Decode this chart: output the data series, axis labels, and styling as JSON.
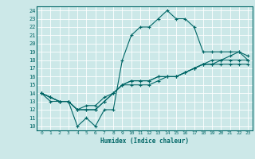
{
  "xlabel": "Humidex (Indice chaleur)",
  "bg_color": "#cce8e8",
  "line_color": "#006666",
  "grid_color": "#ffffff",
  "xlim": [
    -0.5,
    23.5
  ],
  "ylim": [
    9.5,
    24.5
  ],
  "xticks": [
    0,
    1,
    2,
    3,
    4,
    5,
    6,
    7,
    8,
    9,
    10,
    11,
    12,
    13,
    14,
    15,
    16,
    17,
    18,
    19,
    20,
    21,
    22,
    23
  ],
  "yticks": [
    10,
    11,
    12,
    13,
    14,
    15,
    16,
    17,
    18,
    19,
    20,
    21,
    22,
    23,
    24
  ],
  "line1_x": [
    0,
    1,
    2,
    3,
    4,
    5,
    6,
    7,
    8,
    9,
    10,
    11,
    12,
    13,
    14,
    15,
    16,
    17,
    18,
    19,
    20,
    21,
    22,
    23
  ],
  "line1_y": [
    14,
    13,
    13,
    13,
    10,
    11,
    10,
    12,
    12,
    18,
    21,
    22,
    22,
    23,
    24,
    23,
    23,
    22,
    19,
    19,
    19,
    19,
    19,
    18
  ],
  "line2_x": [
    0,
    1,
    2,
    3,
    4,
    5,
    6,
    7,
    8,
    9,
    10,
    11,
    12,
    13,
    14,
    15,
    16,
    17,
    18,
    19,
    20,
    21,
    22,
    23
  ],
  "line2_y": [
    14,
    13.5,
    13,
    13,
    12,
    12,
    12,
    13,
    14,
    15,
    15.5,
    15.5,
    15.5,
    16,
    16,
    16,
    16.5,
    17,
    17.5,
    17.5,
    18,
    18,
    18,
    18
  ],
  "line3_x": [
    0,
    1,
    2,
    3,
    4,
    5,
    6,
    7,
    8,
    9,
    10,
    11,
    12,
    13,
    14,
    15,
    16,
    17,
    18,
    19,
    20,
    21,
    22,
    23
  ],
  "line3_y": [
    14,
    13.5,
    13,
    13,
    12,
    12,
    12,
    13,
    14,
    15,
    15.5,
    15.5,
    15.5,
    16,
    16,
    16,
    16.5,
    17,
    17.5,
    18,
    18,
    18.5,
    19,
    18.5
  ],
  "line4_x": [
    0,
    1,
    2,
    3,
    4,
    5,
    6,
    7,
    8,
    9,
    10,
    11,
    12,
    13,
    14,
    15,
    16,
    17,
    18,
    19,
    20,
    21,
    22,
    23
  ],
  "line4_y": [
    14,
    13.5,
    13,
    13,
    12,
    12.5,
    12.5,
    13.5,
    14,
    15,
    15,
    15,
    15,
    15.5,
    16,
    16,
    16.5,
    17,
    17.5,
    17.5,
    17.5,
    17.5,
    17.5,
    17.5
  ]
}
